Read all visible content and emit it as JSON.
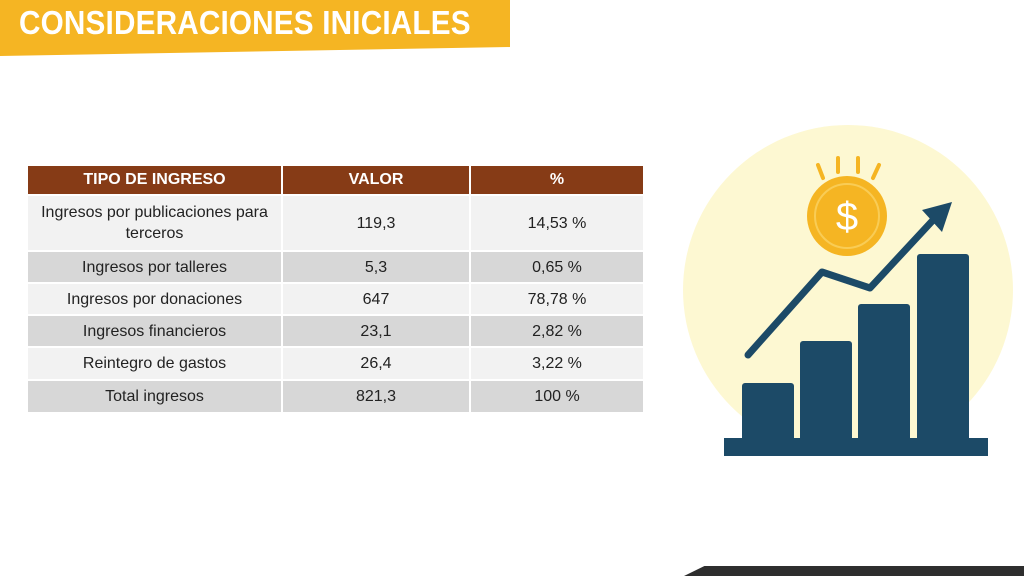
{
  "header": {
    "title": "CONSIDERACIONES INICIALES"
  },
  "table": {
    "columns": [
      "TIPO DE INGRESO",
      "VALOR",
      "%"
    ],
    "rows": [
      {
        "tipo": "Ingresos por publicaciones para terceros",
        "valor": "119,3",
        "pct": "14,53 %"
      },
      {
        "tipo": "Ingresos por talleres",
        "valor": "5,3",
        "pct": "0,65 %"
      },
      {
        "tipo": "Ingresos por donaciones",
        "valor": "647",
        "pct": "78,78 %"
      },
      {
        "tipo": "Ingresos financieros",
        "valor": "23,1",
        "pct": "2,82 %"
      },
      {
        "tipo": "Reintegro de gastos",
        "valor": "26,4",
        "pct": "3,22 %"
      },
      {
        "tipo": "Total ingresos",
        "valor": "821,3",
        "pct": "100 %"
      }
    ]
  },
  "illustration": {
    "icon": "money-growth-chart-icon",
    "coin_symbol": "$",
    "colors": {
      "circle_bg": "#fdf8d2",
      "bars": "#1c4a67",
      "coin": "#f5b523",
      "rays": "#f5b523",
      "coin_symbol": "#ffffff"
    }
  },
  "theme": {
    "banner": "#f5b523",
    "table_header": "#863b16",
    "row_light": "#f2f2f2",
    "row_dark": "#d7d7d7"
  }
}
